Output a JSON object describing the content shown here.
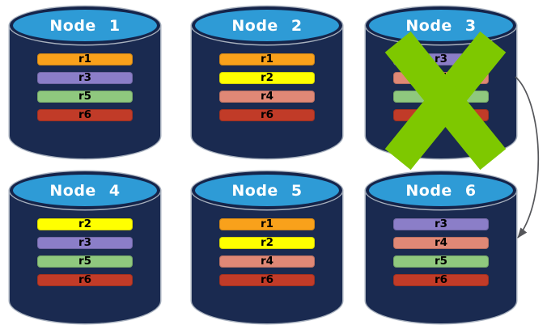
{
  "palette": {
    "background": "#FFFFFF",
    "cylinder_body": "#1A2A50",
    "cylinder_top": "#2E9BD6",
    "cylinder_edge": "#15244A",
    "outline": "#A9B2BF",
    "title_text": "#FFFFFF",
    "bar_text": "#000000",
    "fail_x": "#7EC800",
    "arrow": "#55565A"
  },
  "replica_colors": {
    "r1": "#F9A11B",
    "r2": "#FFFF00",
    "r3": "#8B7EC8",
    "r4": "#E08876",
    "r5": "#8FC87E",
    "r6": "#C13B28"
  },
  "nodes": [
    {
      "label": "Node 1",
      "failed": false,
      "replicas": [
        "r1",
        "r3",
        "r5",
        "r6"
      ]
    },
    {
      "label": "Node 2",
      "failed": false,
      "replicas": [
        "r1",
        "r2",
        "r4",
        "r6"
      ]
    },
    {
      "label": "Node 3",
      "failed": true,
      "replicas": [
        "r3",
        "r4",
        "r5",
        "r6"
      ]
    },
    {
      "label": "Node 4",
      "failed": false,
      "replicas": [
        "r2",
        "r3",
        "r5",
        "r6"
      ]
    },
    {
      "label": "Node 5",
      "failed": false,
      "replicas": [
        "r1",
        "r2",
        "r4",
        "r6"
      ]
    },
    {
      "label": "Node 6",
      "failed": false,
      "replicas": [
        "r3",
        "r4",
        "r5",
        "r6"
      ]
    }
  ],
  "arrow": {
    "from": "Node 3",
    "to": "Node 6"
  }
}
